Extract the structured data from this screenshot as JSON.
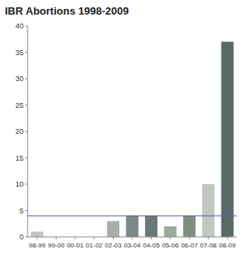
{
  "chart_data": {
    "type": "bar",
    "title": "IBR Abortions 1998-2009",
    "categories": [
      "98-99",
      "99-00",
      "00-01",
      "01-02",
      "02-03",
      "03-04",
      "04-05",
      "05-06",
      "06-07",
      "07-08",
      "08-09"
    ],
    "values": [
      1,
      0,
      0,
      0,
      3,
      4,
      4,
      2,
      4,
      10,
      37
    ],
    "colors": [
      "#c0c4c0",
      "#c0c4c0",
      "#c0c4c0",
      "#c0c4c0",
      "#a8b0a8",
      "#7a8888",
      "#6a7878",
      "#9aaa9a",
      "#808e80",
      "#c0c8c0",
      "#5a6868"
    ],
    "hline": {
      "value": 4,
      "color": "#5555bb"
    },
    "ylim": [
      0,
      40
    ],
    "yticks": [
      0,
      5,
      10,
      15,
      20,
      25,
      30,
      35,
      40
    ],
    "grid": false
  }
}
